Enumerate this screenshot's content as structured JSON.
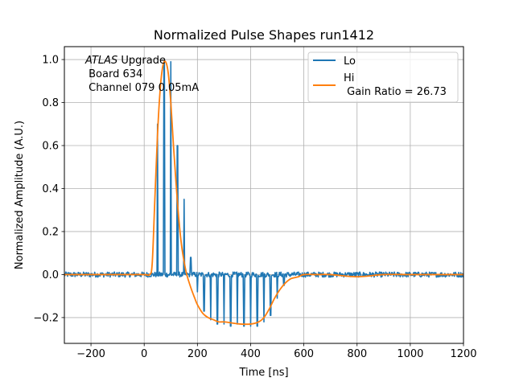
{
  "chart_data": {
    "type": "line",
    "title": "Normalized Pulse Shapes run1412",
    "xlabel": "Time [ns]",
    "ylabel": "Normalized Amplitude (A.U.)",
    "xlim": [
      -300,
      1200
    ],
    "ylim": [
      -0.32,
      1.06
    ],
    "xticks": [
      -200,
      0,
      200,
      400,
      600,
      800,
      1000,
      1200
    ],
    "yticks": [
      -0.2,
      0.0,
      0.2,
      0.4,
      0.6,
      0.8,
      1.0
    ],
    "xtick_labels": [
      "−200",
      "0",
      "200",
      "400",
      "600",
      "800",
      "1000",
      "1200"
    ],
    "ytick_labels": [
      "−0.2",
      "0.0",
      "0.2",
      "0.4",
      "0.6",
      "0.8",
      "1.0"
    ],
    "grid": true,
    "legend_position": "top-right",
    "annotation": {
      "italic": "ATLAS",
      "line1_rest": " Upgrade",
      "line2": " Board 634",
      "line3": " Channel 079 0.05mA"
    },
    "colors": {
      "lo": "#1f77b4",
      "hi": "#ff7f0e",
      "grid": "#b0b0b0"
    },
    "series": [
      {
        "name": "Lo",
        "legend_label": "Lo",
        "baseline_noise": 0.012,
        "sample_period_ns": 25,
        "sample_times": [
          50,
          75,
          100,
          125,
          150,
          175,
          200,
          225,
          250,
          275,
          300,
          325,
          350,
          375,
          400,
          425,
          450,
          475,
          500,
          525
        ],
        "sample_values": [
          0.7,
          0.98,
          0.99,
          0.6,
          0.35,
          0.08,
          -0.08,
          -0.17,
          -0.21,
          -0.23,
          -0.23,
          -0.24,
          -0.23,
          -0.24,
          -0.24,
          -0.24,
          -0.22,
          -0.19,
          -0.11,
          -0.05
        ]
      },
      {
        "name": "Hi",
        "legend_label": "Hi",
        "legend_sublabel": " Gain Ratio = 26.73",
        "x": [
          -300,
          -200,
          -100,
          0,
          20,
          30,
          40,
          50,
          60,
          70,
          80,
          90,
          100,
          110,
          120,
          130,
          140,
          150,
          160,
          175,
          190,
          200,
          220,
          240,
          260,
          280,
          300,
          330,
          360,
          400,
          430,
          450,
          470,
          490,
          510,
          530,
          550,
          580,
          600,
          650,
          700,
          800,
          900,
          1000,
          1100,
          1200
        ],
        "y": [
          0.0,
          0.0,
          0.0,
          0.0,
          0.0,
          0.05,
          0.35,
          0.65,
          0.86,
          0.97,
          0.99,
          0.94,
          0.8,
          0.6,
          0.42,
          0.26,
          0.14,
          0.06,
          0.0,
          -0.06,
          -0.11,
          -0.14,
          -0.18,
          -0.2,
          -0.21,
          -0.22,
          -0.22,
          -0.225,
          -0.23,
          -0.23,
          -0.22,
          -0.2,
          -0.16,
          -0.11,
          -0.07,
          -0.04,
          -0.02,
          -0.01,
          0.0,
          0.0,
          0.0,
          -0.01,
          0.0,
          0.0,
          0.0,
          0.0
        ]
      }
    ]
  }
}
